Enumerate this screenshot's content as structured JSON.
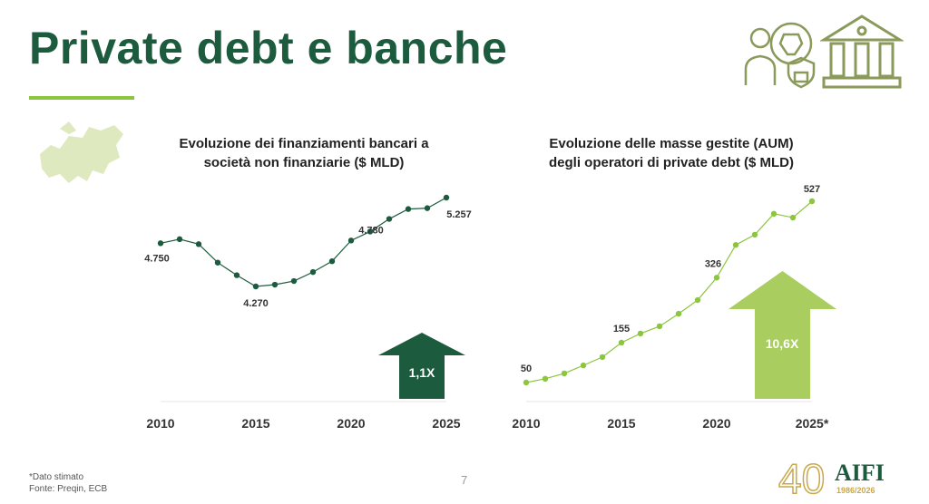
{
  "title": "Private debt e banche",
  "footnote": [
    "*Dato stimato",
    "Fonte: Preqin, ECB"
  ],
  "page_number": "7",
  "logo": {
    "text": "AIFI",
    "years": "1986/2026",
    "number": "40"
  },
  "colors": {
    "dark": "#1d5b3f",
    "light": "#8cc63f",
    "arrow_light": "#a9cd5e",
    "icon": "#8a9a5b"
  },
  "chart_data": [
    {
      "type": "line",
      "title": "Evoluzione dei finanziamenti bancari a società non finanziarie ($ MLD)",
      "title_lines": [
        "Evoluzione dei finanziamenti bancari a",
        "società non finanziarie ($ MLD)"
      ],
      "x": [
        2010,
        2011,
        2012,
        2013,
        2014,
        2015,
        2016,
        2017,
        2018,
        2019,
        2020,
        2021,
        2022,
        2023,
        2024,
        2025
      ],
      "values": [
        4750,
        4795,
        4740,
        4535,
        4395,
        4270,
        4290,
        4330,
        4430,
        4550,
        4780,
        4880,
        5020,
        5130,
        5140,
        5257
      ],
      "ylim": [
        3000,
        5300
      ],
      "tick_labels": [
        "2010",
        "2015",
        "2020",
        "2025"
      ],
      "data_labels": [
        {
          "x": 2010,
          "text": "4.750"
        },
        {
          "x": 2015,
          "text": "4.270"
        },
        {
          "x": 2020,
          "text": "4.780"
        },
        {
          "x": 2025,
          "text": "5.257"
        }
      ],
      "arrow_label": "1,1X",
      "color": "#1d5b3f"
    },
    {
      "type": "line",
      "title": "Evoluzione delle masse gestite (AUM) degli operatori di private debt ($ MLD)",
      "title_lines": [
        "Evoluzione delle masse gestite (AUM)",
        "degli operatori di private debt ($ MLD)"
      ],
      "x": [
        2010,
        2011,
        2012,
        2013,
        2014,
        2015,
        2016,
        2017,
        2018,
        2019,
        2020,
        2021,
        2022,
        2023,
        2024,
        2025
      ],
      "values": [
        50,
        60,
        74,
        95,
        117,
        155,
        179,
        198,
        231,
        267,
        326,
        412,
        439,
        494,
        484,
        527
      ],
      "ylim": [
        0,
        540
      ],
      "tick_labels": [
        "2010",
        "2015",
        "2020",
        "2025*"
      ],
      "data_labels": [
        {
          "x": 2010,
          "text": "50"
        },
        {
          "x": 2015,
          "text": "155"
        },
        {
          "x": 2020,
          "text": "326"
        },
        {
          "x": 2025,
          "text": "527"
        }
      ],
      "arrow_label": "10,6X",
      "color": "#8cc63f"
    }
  ]
}
